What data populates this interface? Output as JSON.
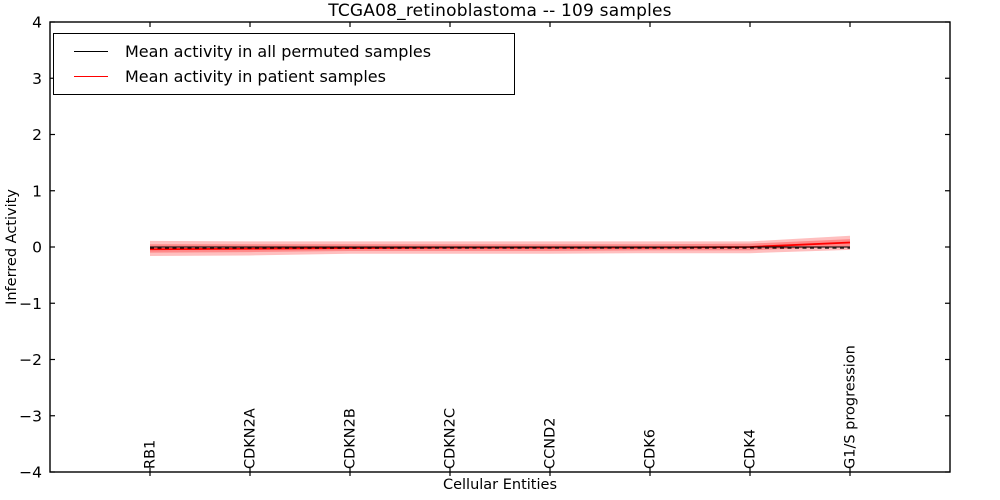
{
  "figure": {
    "title": "TCGA08_retinoblastoma -- 109 samples",
    "xlabel": "Cellular Entities",
    "ylabel": "Inferred Activity"
  },
  "legend": {
    "items": [
      {
        "label": "Mean activity in all permuted samples",
        "color": "#000000"
      },
      {
        "label": "Mean activity in patient samples",
        "color": "#ff0000"
      }
    ]
  },
  "chart_data": {
    "type": "line",
    "title": "TCGA08_retinoblastoma -- 109 samples",
    "xlabel": "Cellular Entities",
    "ylabel": "Inferred Activity",
    "ylim": [
      -4,
      4
    ],
    "yticks": [
      4,
      3,
      2,
      1,
      0,
      -1,
      -2,
      -3,
      -4
    ],
    "ytick_labels": [
      "4",
      "3",
      "2",
      "1",
      "0",
      "−1",
      "−2",
      "−3",
      "−4"
    ],
    "categories": [
      "RB1",
      "CDKN2A",
      "CDKN2B",
      "CDKN2C",
      "CCND2",
      "CDK6",
      "CDK4",
      "G1/S progression"
    ],
    "series": [
      {
        "name": "Mean activity in all permuted samples",
        "color": "#000000",
        "style": "solid",
        "width": 1.1,
        "values": [
          0,
          0,
          0,
          0,
          0,
          0,
          0,
          0
        ]
      },
      {
        "name": "Mean activity in patient samples",
        "color": "#ff0000",
        "style": "solid",
        "width": 1.8,
        "values": [
          -0.04,
          -0.03,
          -0.02,
          -0.01,
          -0.01,
          -0.01,
          0,
          0.08
        ]
      }
    ],
    "reference_line": {
      "value": -0.02,
      "color": "#000000",
      "style": "dashed"
    },
    "bands": [
      {
        "name": "patient-range-outer",
        "color": "#ff0000",
        "opacity": 0.25,
        "upper": [
          0.11,
          0.1,
          0.1,
          0.1,
          0.1,
          0.1,
          0.1,
          0.2
        ],
        "lower": [
          -0.16,
          -0.15,
          -0.12,
          -0.12,
          -0.12,
          -0.11,
          -0.11,
          -0.05
        ]
      },
      {
        "name": "patient-range-inner",
        "color": "#ff0000",
        "opacity": 0.28,
        "upper": [
          0.05,
          0.05,
          0.05,
          0.05,
          0.05,
          0.05,
          0.06,
          0.14
        ],
        "lower": [
          -0.1,
          -0.09,
          -0.07,
          -0.07,
          -0.07,
          -0.06,
          -0.06,
          0.01
        ]
      }
    ],
    "legend_position": "upper left",
    "grid": false
  }
}
